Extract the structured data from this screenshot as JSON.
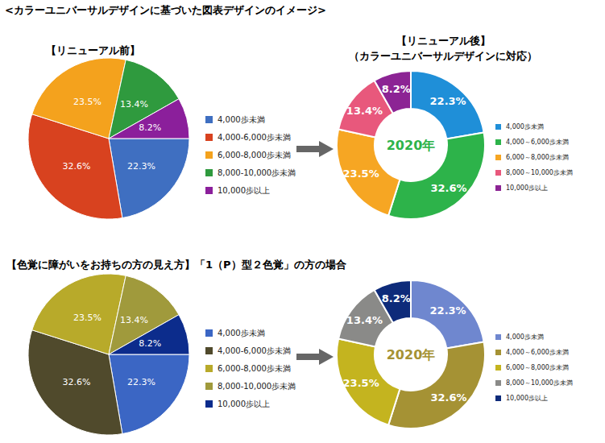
{
  "heading": "<カラーユニバーサルデザインに基づいた図表デザインのイメージ>",
  "section_title": "【色覚に障がいをお持ちの方の見え方】「1（P）型２色覚」の方の場合",
  "chart_data": [
    {
      "type": "pie",
      "title": "【リニューアル前】",
      "categories": [
        "4,000歩未満",
        "4,000-6,000歩未満",
        "6,000-8,000歩未満",
        "8,000-10,000歩未満",
        "10,000歩以上"
      ],
      "values": [
        22.3,
        32.6,
        23.5,
        13.4,
        8.2
      ],
      "value_labels": [
        "22.3%",
        "32.6%",
        "23.5%",
        "13.4%",
        "8.2%"
      ],
      "colors": [
        "#3f6fc1",
        "#d8421f",
        "#f4a21d",
        "#2f9a3e",
        "#8b1f9b"
      ],
      "data_labels": true,
      "legend": "right"
    },
    {
      "type": "donut",
      "title": "【リニューアル後】",
      "subtitle": "（カラーユニバーサルデザインに対応）",
      "annotation": "2020年",
      "categories": [
        "4,000歩未満",
        "4,000～6,000歩未満",
        "6,000～8,000歩未満",
        "8,000～10,000歩未満",
        "10,000歩以上"
      ],
      "values": [
        22.3,
        32.6,
        23.5,
        13.4,
        8.2
      ],
      "value_labels": [
        "22.3%",
        "32.6%",
        "23.5%",
        "13.4%",
        "8.2%"
      ],
      "colors": [
        "#1f8fd8",
        "#2db34a",
        "#f6a623",
        "#e8587c",
        "#8c2494"
      ],
      "data_labels": true,
      "legend": "right"
    },
    {
      "type": "pie",
      "categories": [
        "4,000歩未満",
        "4,000-6,000歩未満",
        "6,000-8,000歩未満",
        "8,000-10,000歩未満",
        "10,000歩以上"
      ],
      "values": [
        22.3,
        32.6,
        23.5,
        13.4,
        8.2
      ],
      "value_labels": [
        "22.3%",
        "32.6%",
        "23.5%",
        "13.4%",
        "8.2%"
      ],
      "colors": [
        "#3b66c4",
        "#504a2c",
        "#b8aa2a",
        "#a09a3c",
        "#0c2c8c"
      ],
      "data_labels": true,
      "legend": "right"
    },
    {
      "type": "donut",
      "annotation": "2020年",
      "categories": [
        "4,000歩未満",
        "4,000～6,000歩未満",
        "6,000～8,000歩未満",
        "8,000～10,000歩未満",
        "10,000歩以上"
      ],
      "values": [
        22.3,
        32.6,
        23.5,
        13.4,
        8.2
      ],
      "value_labels": [
        "22.3%",
        "32.6%",
        "23.5%",
        "13.4%",
        "8.2%"
      ],
      "colors": [
        "#6f87cf",
        "#a59234",
        "#c4b41f",
        "#8a8a88",
        "#0e2b7a"
      ],
      "data_labels": true,
      "legend": "right"
    }
  ]
}
